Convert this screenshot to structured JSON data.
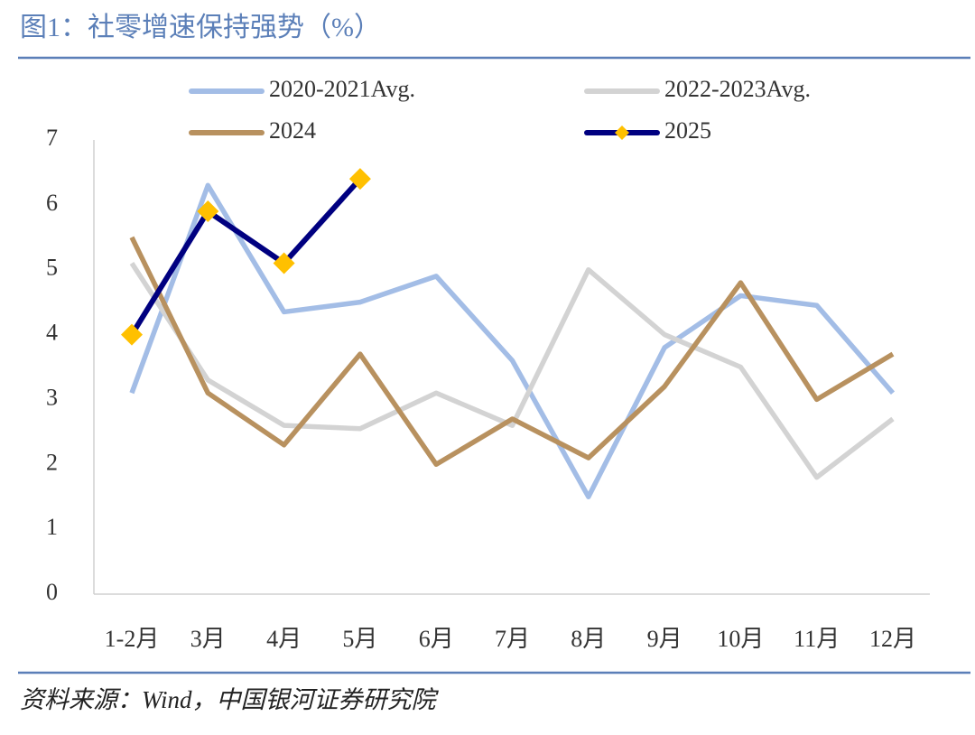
{
  "chart_data": {
    "type": "line",
    "title": "图1：社零增速保持强势（%）",
    "source": "资料来源：Wind，中国银河证券研究院",
    "categories": [
      "1-2月",
      "3月",
      "4月",
      "5月",
      "6月",
      "7月",
      "8月",
      "9月",
      "10月",
      "11月",
      "12月"
    ],
    "series": [
      {
        "name": "2020-2021Avg.",
        "color": "#a3bde6",
        "values": [
          3.1,
          6.3,
          4.35,
          4.5,
          4.9,
          3.6,
          1.5,
          3.8,
          4.6,
          4.45,
          3.1
        ]
      },
      {
        "name": "2022-2023Avg.",
        "color": "#d3d3d3",
        "values": [
          5.1,
          3.3,
          2.6,
          2.55,
          3.1,
          2.6,
          5.0,
          4.0,
          3.5,
          1.8,
          2.7
        ]
      },
      {
        "name": "2024",
        "color": "#b8915f",
        "values": [
          5.5,
          3.1,
          2.3,
          3.7,
          2.0,
          2.7,
          2.1,
          3.2,
          4.8,
          3.0,
          3.7
        ]
      },
      {
        "name": "2025",
        "color": "#000080",
        "marker": "diamond",
        "marker_color": "#ffc000",
        "values": [
          4.0,
          5.9,
          5.1,
          6.4,
          null,
          null,
          null,
          null,
          null,
          null,
          null
        ]
      }
    ],
    "ylim": [
      0,
      7
    ],
    "yticks": [
      0,
      1,
      2,
      3,
      4,
      5,
      6,
      7
    ],
    "grid": false
  }
}
